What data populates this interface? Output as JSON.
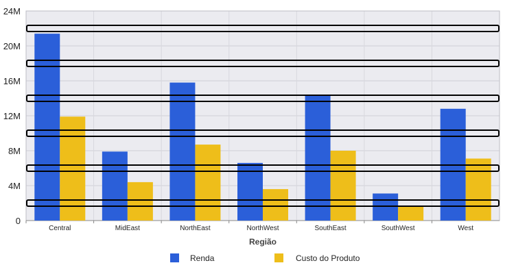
{
  "chart_data": {
    "type": "bar",
    "title": "",
    "xlabel": "Região",
    "ylabel": "",
    "categories": [
      "Central",
      "MidEast",
      "NorthEast",
      "NorthWest",
      "SouthEast",
      "SouthWest",
      "West"
    ],
    "series": [
      {
        "name": "Renda",
        "color": "#2b5fd9",
        "values": [
          21.4,
          7.9,
          15.8,
          6.6,
          14.4,
          3.1,
          12.8
        ]
      },
      {
        "name": "Custo do Produto",
        "color": "#eebe1a",
        "values": [
          11.9,
          4.4,
          8.7,
          3.6,
          8.0,
          1.7,
          7.1
        ]
      }
    ],
    "ylim": [
      0,
      24
    ],
    "yticks": [
      0,
      4,
      8,
      12,
      16,
      20,
      24
    ],
    "ytick_labels": [
      "0",
      "4M",
      "8M",
      "12M",
      "16M",
      "20M",
      "24M"
    ],
    "highlight_bands": [
      22,
      18,
      14,
      10,
      6,
      2
    ],
    "grid": true,
    "legend_position": "bottom",
    "plot_background": "#ebebf0"
  }
}
